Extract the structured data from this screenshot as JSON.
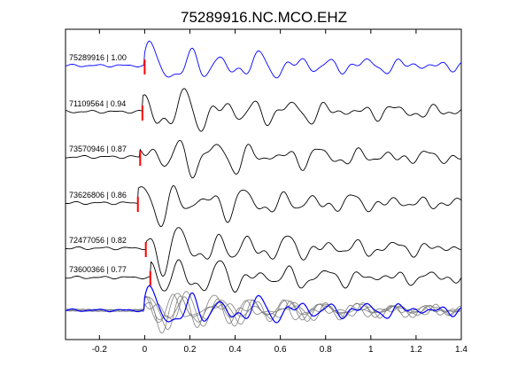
{
  "chart_data": {
    "type": "line",
    "title": "75289916.NC.MCO.EHZ",
    "xlabel": "",
    "ylabel": "",
    "xlim": [
      -0.35,
      1.4
    ],
    "x_ticks": [
      "-0.2",
      "0",
      "0.2",
      "0.4",
      "0.6",
      "0.8",
      "1",
      "1.2",
      "1.4"
    ],
    "x_tick_values": [
      -0.2,
      0,
      0.2,
      0.4,
      0.6,
      0.8,
      1.0,
      1.2,
      1.4
    ],
    "grid": false,
    "legend": "none",
    "series": [
      {
        "label": "75289916 | 1.00",
        "event_id": "75289916",
        "correlation": 1.0,
        "pick_time": 0.0,
        "color": "#0000ff"
      },
      {
        "label": "71109564 | 0.94",
        "event_id": "71109564",
        "correlation": 0.94,
        "pick_time": -0.01,
        "color": "#000000"
      },
      {
        "label": "73570946 | 0.87",
        "event_id": "73570946",
        "correlation": 0.87,
        "pick_time": -0.02,
        "color": "#000000"
      },
      {
        "label": "73626806 | 0.86",
        "event_id": "73626806",
        "correlation": 0.86,
        "pick_time": -0.03,
        "color": "#000000"
      },
      {
        "label": "72477056 | 0.82",
        "event_id": "72477056",
        "correlation": 0.82,
        "pick_time": 0.005,
        "color": "#000000"
      },
      {
        "label": "73600366 | 0.77",
        "event_id": "73600366",
        "correlation": 0.77,
        "pick_time": 0.025,
        "color": "#000000"
      }
    ],
    "stack": {
      "overlay_color": "#808080",
      "reference_color": "#0000ff"
    },
    "pick_color": "#ff0000"
  }
}
